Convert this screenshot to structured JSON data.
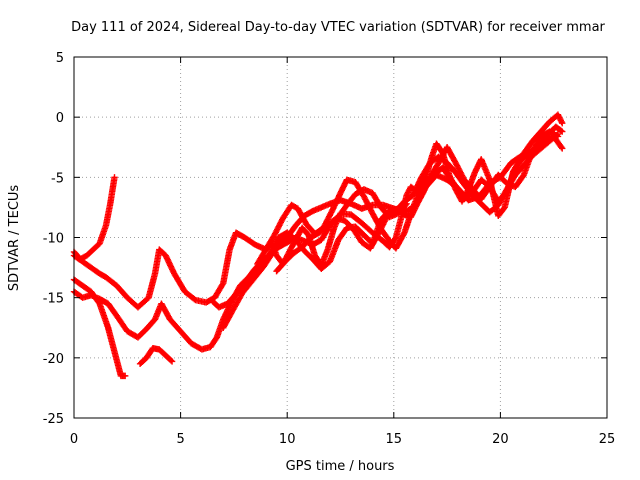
{
  "chart_data": {
    "type": "scatter",
    "title": "Day 111 of 2024, Sidereal Day-to-day VTEC variation (SDTVAR) for receiver mmar",
    "xlabel": "GPS time / hours",
    "ylabel": "SDTVAR / TECUs",
    "xlim": [
      0,
      25
    ],
    "ylim": [
      -25,
      5
    ],
    "xticks": [
      "0",
      "5",
      "10",
      "15",
      "20",
      "25"
    ],
    "yticks": [
      "-25",
      "-20",
      "-15",
      "-10",
      "-5",
      "0",
      "5"
    ],
    "grid": true,
    "marker": "plus",
    "color": "#ff0000",
    "series": [
      {
        "points": [
          [
            0.0,
            -11.2
          ],
          [
            0.3,
            -11.8
          ],
          [
            0.6,
            -11.5
          ],
          [
            0.9,
            -11.0
          ],
          [
            1.2,
            -10.5
          ],
          [
            1.5,
            -9.0
          ],
          [
            1.7,
            -7.2
          ],
          [
            1.9,
            -5.0
          ]
        ]
      },
      {
        "points": [
          [
            0.0,
            -13.5
          ],
          [
            0.4,
            -14.0
          ],
          [
            0.8,
            -14.5
          ],
          [
            1.2,
            -15.5
          ],
          [
            1.6,
            -17.5
          ],
          [
            1.9,
            -19.5
          ],
          [
            2.2,
            -21.5
          ],
          [
            2.4,
            -21.5
          ]
        ]
      },
      {
        "points": [
          [
            3.1,
            -20.5
          ],
          [
            3.4,
            -20.0
          ],
          [
            3.7,
            -19.2
          ],
          [
            4.0,
            -19.3
          ],
          [
            4.3,
            -19.8
          ],
          [
            4.6,
            -20.3
          ]
        ]
      },
      {
        "points": [
          [
            0.0,
            -11.5
          ],
          [
            0.4,
            -12.0
          ],
          [
            0.8,
            -12.5
          ],
          [
            1.2,
            -13.0
          ],
          [
            1.5,
            -13.3
          ],
          [
            2.0,
            -14.0
          ],
          [
            2.5,
            -15.0
          ],
          [
            3.0,
            -15.8
          ],
          [
            3.5,
            -15.0
          ],
          [
            3.8,
            -13.0
          ],
          [
            4.0,
            -11.0
          ],
          [
            4.3,
            -11.5
          ],
          [
            4.7,
            -13.0
          ],
          [
            5.2,
            -14.5
          ],
          [
            5.7,
            -15.2
          ],
          [
            6.2,
            -15.4
          ],
          [
            6.6,
            -15.0
          ],
          [
            7.0,
            -13.8
          ],
          [
            7.3,
            -11.0
          ],
          [
            7.6,
            -9.6
          ],
          [
            8.0,
            -10.0
          ],
          [
            8.5,
            -10.6
          ],
          [
            9.0,
            -11.0
          ],
          [
            9.3,
            -10.5
          ],
          [
            9.5,
            -11.5
          ],
          [
            9.8,
            -12.2
          ],
          [
            10.3,
            -10.5
          ],
          [
            10.7,
            -9.2
          ],
          [
            11.0,
            -9.8
          ],
          [
            11.3,
            -11.5
          ],
          [
            11.6,
            -12.3
          ],
          [
            11.9,
            -11.0
          ],
          [
            12.2,
            -9.2
          ],
          [
            12.5,
            -8.0
          ],
          [
            13.0,
            -8.1
          ],
          [
            13.5,
            -8.8
          ],
          [
            14.0,
            -9.6
          ],
          [
            14.5,
            -10.3
          ],
          [
            14.8,
            -10.8
          ],
          [
            15.1,
            -10.0
          ],
          [
            15.4,
            -8.0
          ],
          [
            15.6,
            -6.5
          ],
          [
            15.8,
            -5.8
          ],
          [
            16.1,
            -6.2
          ],
          [
            16.5,
            -5.0
          ],
          [
            16.8,
            -3.2
          ],
          [
            17.0,
            -2.2
          ],
          [
            17.3,
            -3.0
          ],
          [
            17.6,
            -4.8
          ],
          [
            17.9,
            -6.0
          ],
          [
            18.2,
            -7.0
          ],
          [
            18.5,
            -6.0
          ],
          [
            18.8,
            -4.6
          ],
          [
            19.1,
            -3.5
          ],
          [
            19.5,
            -5.2
          ],
          [
            19.9,
            -8.2
          ],
          [
            20.2,
            -7.5
          ],
          [
            20.6,
            -4.5
          ],
          [
            21.0,
            -3.5
          ],
          [
            21.4,
            -3.0
          ],
          [
            21.8,
            -2.5
          ],
          [
            22.2,
            -1.5
          ],
          [
            22.6,
            -0.8
          ],
          [
            22.9,
            -1.2
          ]
        ]
      },
      {
        "points": [
          [
            0.0,
            -14.5
          ],
          [
            0.4,
            -15.0
          ],
          [
            0.8,
            -14.8
          ],
          [
            1.2,
            -15.1
          ],
          [
            1.6,
            -15.5
          ],
          [
            2.0,
            -16.5
          ],
          [
            2.5,
            -17.8
          ],
          [
            3.0,
            -18.3
          ],
          [
            3.4,
            -17.6
          ],
          [
            3.8,
            -16.8
          ],
          [
            4.1,
            -15.5
          ],
          [
            4.5,
            -16.8
          ],
          [
            5.0,
            -17.8
          ],
          [
            5.5,
            -18.8
          ],
          [
            6.0,
            -19.3
          ],
          [
            6.4,
            -19.1
          ],
          [
            6.7,
            -18.3
          ],
          [
            7.0,
            -16.8
          ],
          [
            7.4,
            -15.3
          ],
          [
            7.8,
            -14.0
          ],
          [
            8.2,
            -13.3
          ],
          [
            8.6,
            -13.0
          ],
          [
            9.0,
            -12.0
          ],
          [
            9.3,
            -11.0
          ],
          [
            9.6,
            -10.0
          ],
          [
            10.0,
            -9.6
          ],
          [
            10.4,
            -10.2
          ],
          [
            10.8,
            -11.1
          ],
          [
            11.2,
            -11.8
          ],
          [
            11.6,
            -12.6
          ],
          [
            12.0,
            -12.0
          ],
          [
            12.4,
            -10.2
          ],
          [
            12.8,
            -9.2
          ],
          [
            13.2,
            -9.1
          ],
          [
            13.6,
            -9.8
          ],
          [
            14.0,
            -10.5
          ],
          [
            14.4,
            -8.5
          ],
          [
            14.8,
            -7.8
          ],
          [
            15.2,
            -7.6
          ],
          [
            15.5,
            -8.1
          ],
          [
            15.8,
            -8.3
          ],
          [
            16.1,
            -7.2
          ],
          [
            16.4,
            -6.2
          ],
          [
            16.7,
            -5.0
          ],
          [
            17.0,
            -4.6
          ],
          [
            17.3,
            -4.2
          ],
          [
            17.6,
            -5.0
          ],
          [
            17.9,
            -5.7
          ],
          [
            18.3,
            -6.8
          ],
          [
            18.7,
            -6.2
          ],
          [
            19.1,
            -5.2
          ],
          [
            19.5,
            -5.8
          ],
          [
            19.9,
            -7.0
          ],
          [
            20.3,
            -6.2
          ],
          [
            20.7,
            -4.2
          ],
          [
            21.1,
            -3.0
          ],
          [
            21.5,
            -2.0
          ],
          [
            21.9,
            -1.2
          ],
          [
            22.3,
            -0.4
          ],
          [
            22.7,
            0.2
          ],
          [
            22.9,
            -0.5
          ]
        ]
      },
      {
        "points": [
          [
            7.0,
            -17.5
          ],
          [
            7.4,
            -16.2
          ],
          [
            7.9,
            -14.6
          ],
          [
            8.4,
            -13.5
          ],
          [
            8.9,
            -12.4
          ],
          [
            9.3,
            -11.3
          ],
          [
            9.6,
            -10.5
          ],
          [
            10.0,
            -10.0
          ],
          [
            10.4,
            -9.0
          ],
          [
            10.8,
            -8.2
          ],
          [
            11.2,
            -7.8
          ],
          [
            11.6,
            -7.5
          ],
          [
            12.0,
            -7.2
          ],
          [
            12.5,
            -6.9
          ],
          [
            13.0,
            -7.2
          ],
          [
            13.5,
            -7.6
          ],
          [
            14.0,
            -7.3
          ],
          [
            14.5,
            -7.3
          ],
          [
            15.0,
            -7.6
          ],
          [
            15.5,
            -7.9
          ],
          [
            16.0,
            -7.4
          ],
          [
            16.5,
            -5.8
          ],
          [
            17.0,
            -4.8
          ],
          [
            17.5,
            -5.2
          ],
          [
            18.0,
            -5.9
          ],
          [
            18.5,
            -6.9
          ],
          [
            19.0,
            -6.6
          ],
          [
            19.5,
            -5.5
          ],
          [
            20.0,
            -5.0
          ],
          [
            20.5,
            -3.8
          ],
          [
            21.0,
            -3.2
          ],
          [
            21.5,
            -2.8
          ],
          [
            22.0,
            -2.2
          ],
          [
            22.5,
            -1.6
          ],
          [
            22.9,
            -2.6
          ]
        ]
      },
      {
        "points": [
          [
            9.5,
            -12.8
          ],
          [
            9.9,
            -12.0
          ],
          [
            10.3,
            -11.3
          ],
          [
            10.7,
            -10.8
          ],
          [
            11.1,
            -10.0
          ],
          [
            11.5,
            -9.6
          ],
          [
            11.9,
            -9.0
          ],
          [
            12.3,
            -8.4
          ],
          [
            12.7,
            -8.6
          ],
          [
            13.1,
            -9.3
          ],
          [
            13.5,
            -10.4
          ],
          [
            13.9,
            -10.9
          ],
          [
            14.3,
            -9.6
          ],
          [
            14.7,
            -8.2
          ],
          [
            15.1,
            -7.8
          ],
          [
            15.5,
            -7.0
          ],
          [
            15.9,
            -6.5
          ],
          [
            16.3,
            -5.0
          ],
          [
            16.7,
            -3.8
          ],
          [
            17.1,
            -3.3
          ],
          [
            17.5,
            -3.8
          ],
          [
            17.9,
            -4.6
          ],
          [
            18.3,
            -5.6
          ],
          [
            18.7,
            -6.5
          ],
          [
            19.1,
            -7.2
          ],
          [
            19.5,
            -7.9
          ],
          [
            19.9,
            -7.3
          ],
          [
            20.3,
            -6.0
          ],
          [
            20.7,
            -4.8
          ],
          [
            21.1,
            -4.0
          ],
          [
            21.5,
            -3.2
          ],
          [
            21.9,
            -2.6
          ],
          [
            22.3,
            -2.0
          ],
          [
            22.7,
            -1.4
          ]
        ]
      },
      {
        "points": [
          [
            6.5,
            -15.3
          ],
          [
            6.8,
            -15.8
          ],
          [
            7.2,
            -15.5
          ],
          [
            7.6,
            -14.7
          ],
          [
            8.0,
            -13.8
          ],
          [
            8.4,
            -12.8
          ],
          [
            8.8,
            -12.0
          ],
          [
            9.2,
            -11.4
          ],
          [
            9.6,
            -10.8
          ],
          [
            10.0,
            -10.4
          ],
          [
            10.4,
            -10.0
          ],
          [
            10.8,
            -10.3
          ],
          [
            11.2,
            -10.6
          ],
          [
            11.6,
            -10.2
          ],
          [
            12.0,
            -9.0
          ],
          [
            12.4,
            -8.3
          ],
          [
            12.8,
            -7.3
          ],
          [
            13.2,
            -6.4
          ],
          [
            13.6,
            -6.0
          ],
          [
            14.0,
            -6.3
          ],
          [
            14.4,
            -7.5
          ],
          [
            14.8,
            -8.3
          ],
          [
            15.2,
            -8.0
          ],
          [
            15.6,
            -7.2
          ]
        ]
      },
      {
        "points": [
          [
            8.6,
            -12.2
          ],
          [
            9.0,
            -11.0
          ],
          [
            9.4,
            -9.8
          ],
          [
            9.8,
            -8.4
          ],
          [
            10.2,
            -7.3
          ],
          [
            10.5,
            -7.6
          ],
          [
            10.9,
            -8.9
          ],
          [
            11.3,
            -9.7
          ],
          [
            11.7,
            -9.2
          ],
          [
            12.1,
            -7.8
          ],
          [
            12.5,
            -6.3
          ],
          [
            12.8,
            -5.2
          ],
          [
            13.2,
            -5.4
          ],
          [
            13.6,
            -6.6
          ],
          [
            14.0,
            -8.0
          ],
          [
            14.4,
            -9.3
          ],
          [
            14.8,
            -10.3
          ],
          [
            15.1,
            -10.9
          ],
          [
            15.5,
            -9.6
          ],
          [
            15.9,
            -7.5
          ],
          [
            16.3,
            -5.8
          ],
          [
            16.7,
            -5.0
          ],
          [
            17.1,
            -3.8
          ],
          [
            17.5,
            -2.5
          ],
          [
            17.9,
            -3.8
          ],
          [
            18.3,
            -5.2
          ],
          [
            18.7,
            -6.0
          ],
          [
            19.1,
            -6.8
          ],
          [
            19.5,
            -5.8
          ],
          [
            19.9,
            -4.8
          ],
          [
            20.3,
            -5.5
          ],
          [
            20.7,
            -5.8
          ],
          [
            21.1,
            -4.8
          ],
          [
            21.5,
            -2.8
          ],
          [
            21.9,
            -1.6
          ],
          [
            22.3,
            -1.2
          ],
          [
            22.7,
            -1.6
          ]
        ]
      }
    ]
  }
}
